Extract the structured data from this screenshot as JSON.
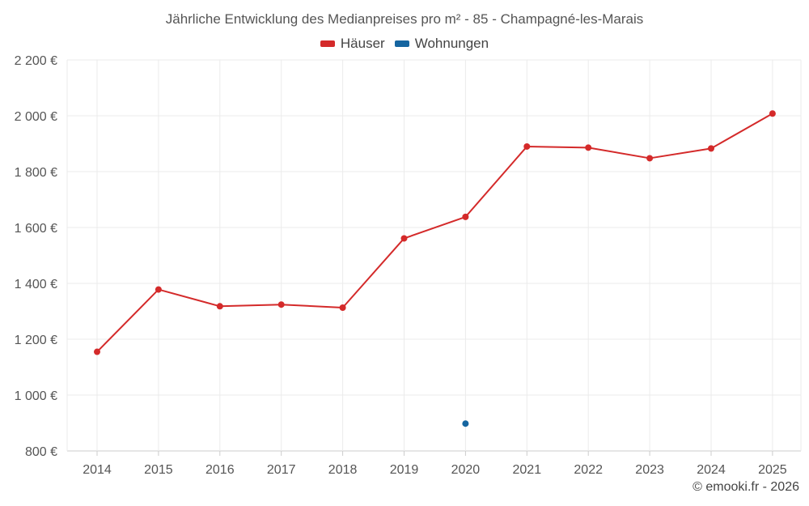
{
  "chart_data": {
    "type": "line",
    "title": "Jährliche Entwicklung des Medianpreises pro m² - 85 - Champagné-les-Marais",
    "categories": [
      "2014",
      "2015",
      "2016",
      "2017",
      "2018",
      "2019",
      "2020",
      "2021",
      "2022",
      "2023",
      "2024",
      "2025"
    ],
    "series": [
      {
        "name": "Häuser",
        "color": "#d42a2a",
        "values": [
          1155,
          1378,
          1318,
          1324,
          1313,
          1561,
          1638,
          1890,
          1886,
          1848,
          1883,
          2008
        ]
      },
      {
        "name": "Wohnungen",
        "color": "#1565a0",
        "values": [
          null,
          null,
          null,
          null,
          null,
          null,
          898,
          null,
          null,
          null,
          null,
          null
        ]
      }
    ],
    "ylim": [
      800,
      2200
    ],
    "yticks": [
      800,
      1000,
      1200,
      1400,
      1600,
      1800,
      2000,
      2200
    ],
    "ytick_labels": [
      "800 €",
      "1 000 €",
      "1 200 €",
      "1 400 €",
      "1 600 €",
      "1 800 €",
      "2 000 €",
      "2 200 €"
    ],
    "grid": true,
    "legend_position": "top-center",
    "xlabel": "",
    "ylabel": ""
  },
  "watermark": "© emooki.fr - 2026"
}
